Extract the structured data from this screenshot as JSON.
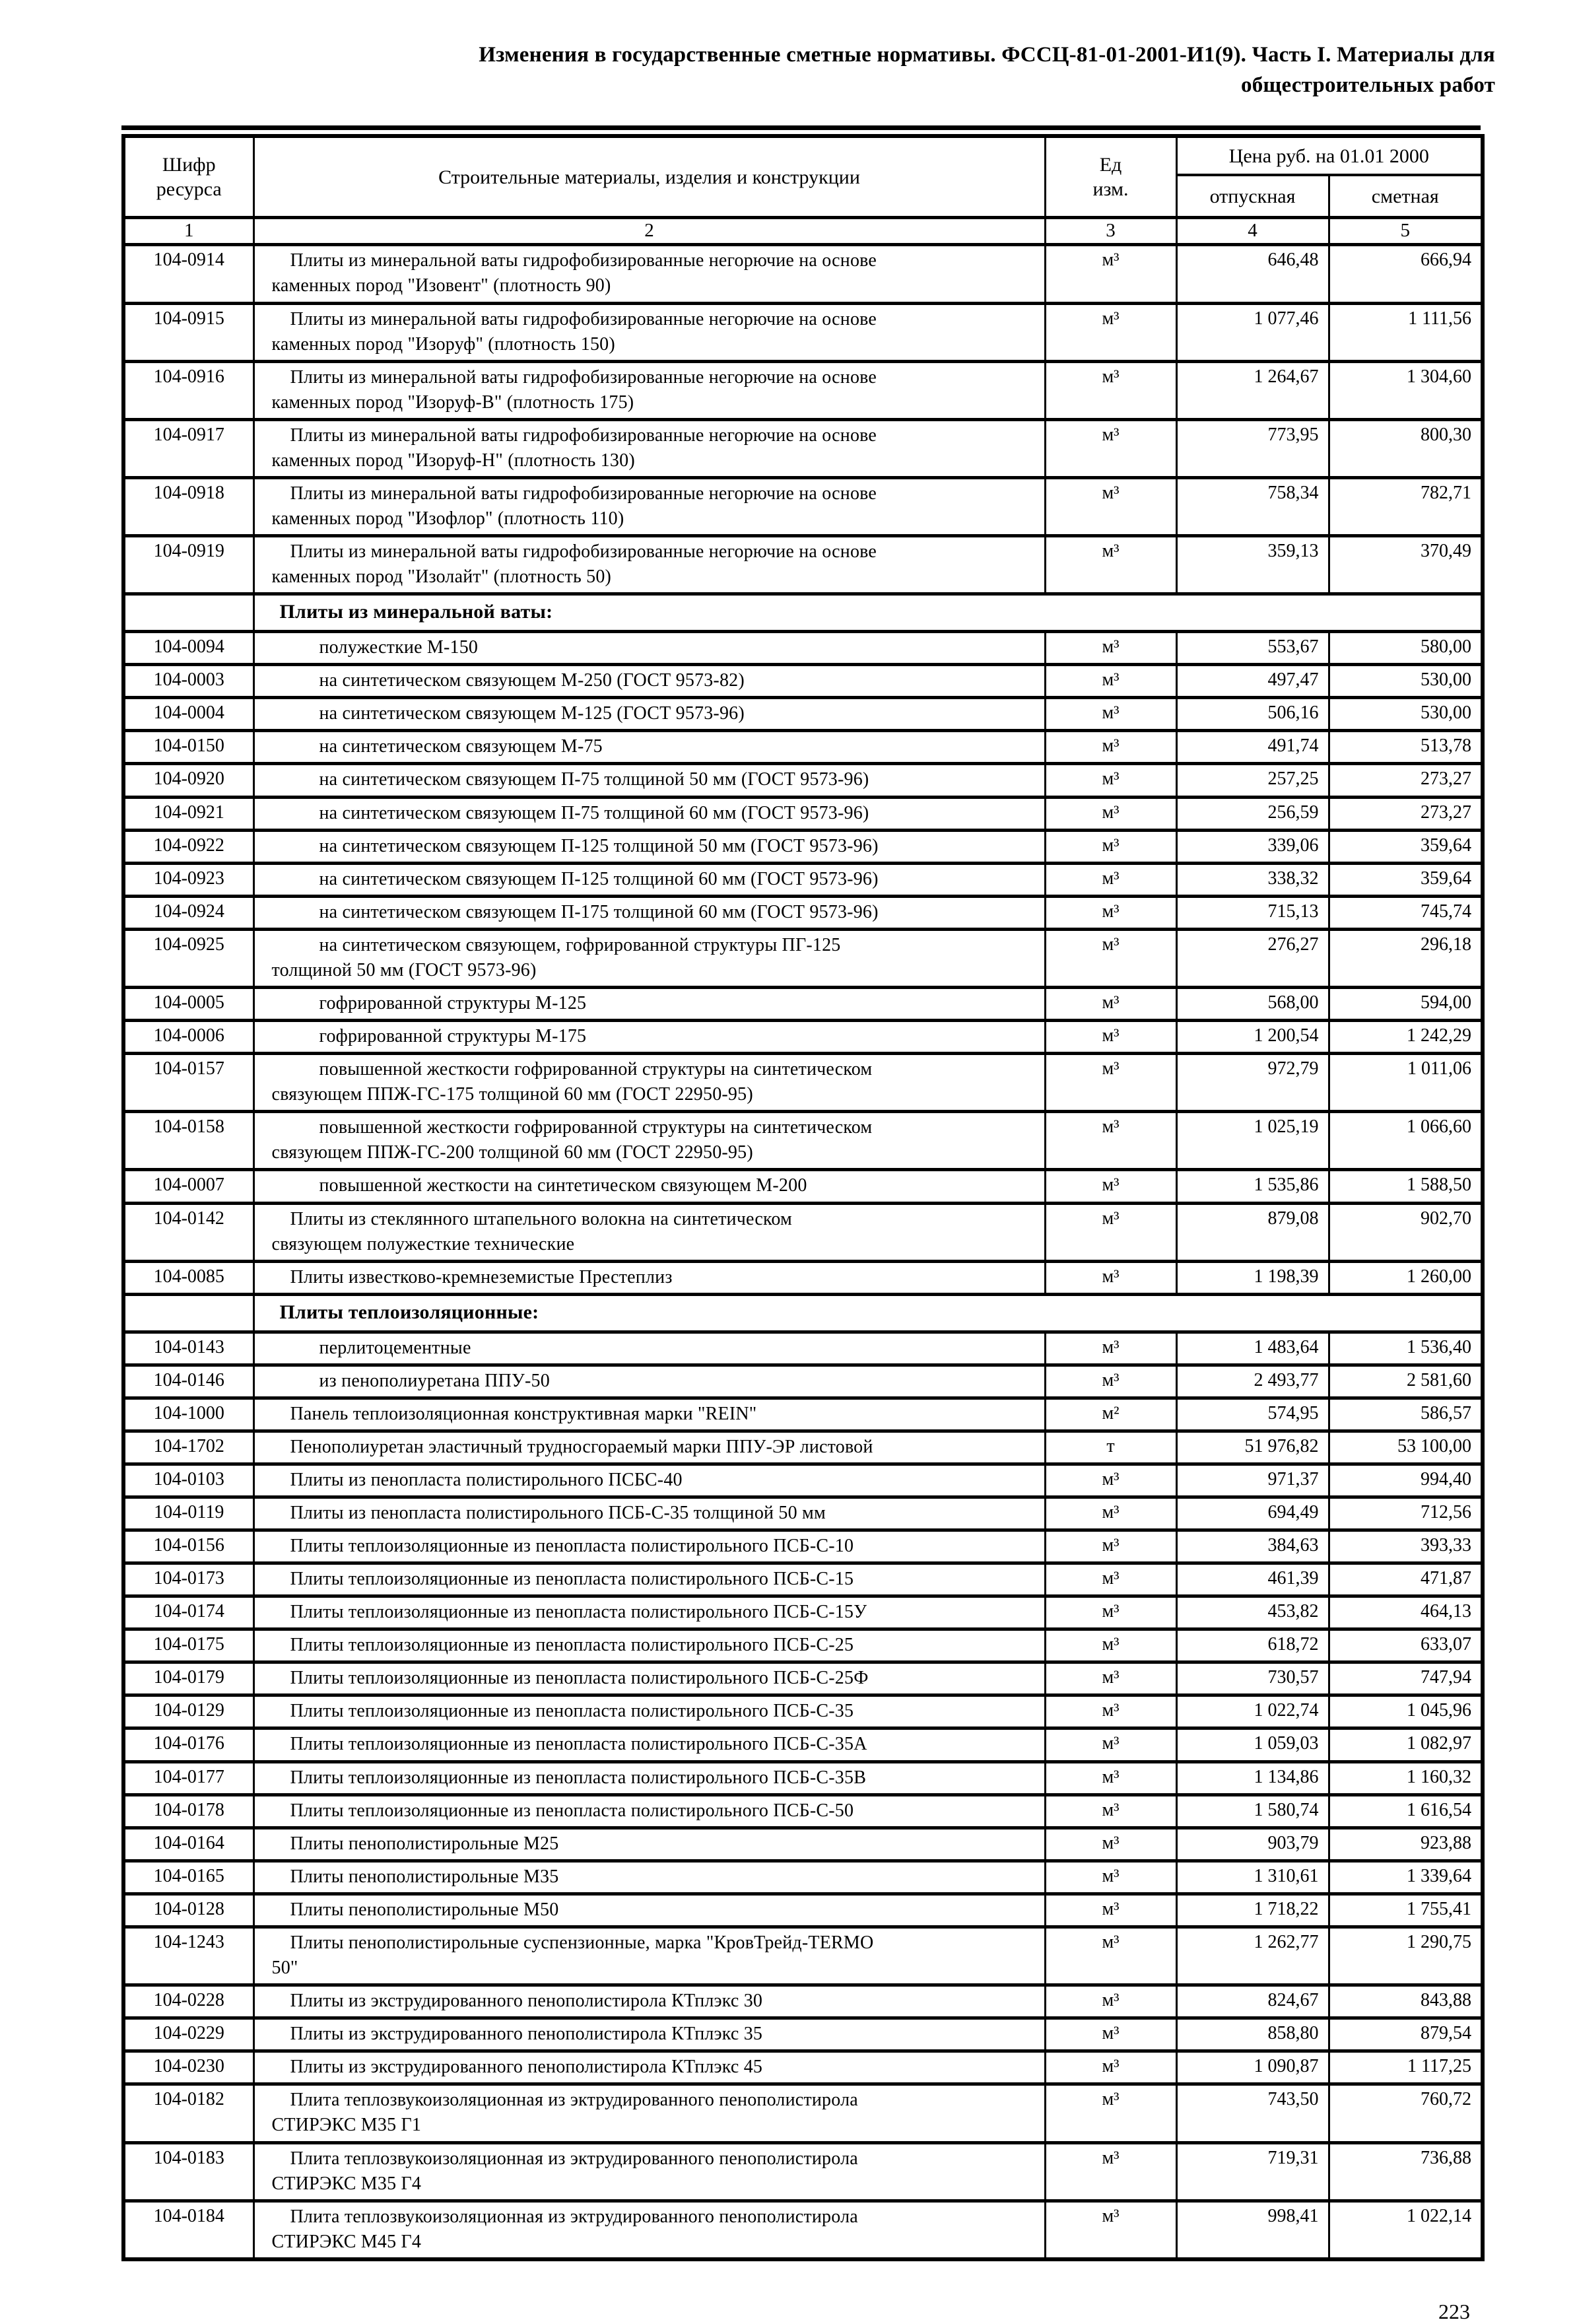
{
  "colors": {
    "ink": "#000000",
    "paper": "#ffffff"
  },
  "page": {
    "title": "Изменения в государственные сметные нормативы. ФССЦ-81-01-2001-И1(9). Часть I. Материалы для общестроительных работ",
    "page_number": "223"
  },
  "table": {
    "headers": {
      "code": "Шифр\nресурса",
      "materials": "Строительные материалы, изделия и конструкции",
      "unit": "Ед\nизм.",
      "price_group": "Цена руб. на 01.01 2000",
      "price_otpusknaya": "отпускная",
      "price_smetnaya": "сметная",
      "numbers": [
        "1",
        "2",
        "3",
        "4",
        "5"
      ]
    },
    "rows": [
      {
        "style": "item",
        "code": "104-0914",
        "name": "Плиты из минеральной ваты гидрофобизированные негорючие на основе\nкаменных пород \"Изовент\" (плотность 90)",
        "unit": "м³",
        "otpusknaya": "646,48",
        "smetnaya": "666,94"
      },
      {
        "style": "item",
        "code": "104-0915",
        "name": "Плиты из минеральной ваты гидрофобизированные негорючие на основе\nкаменных пород \"Изоруф\" (плотность 150)",
        "unit": "м³",
        "otpusknaya": "1 077,46",
        "smetnaya": "1 111,56"
      },
      {
        "style": "item",
        "code": "104-0916",
        "name": "Плиты из минеральной ваты гидрофобизированные негорючие на основе\nкаменных пород \"Изоруф-В\" (плотность 175)",
        "unit": "м³",
        "otpusknaya": "1 264,67",
        "smetnaya": "1 304,60"
      },
      {
        "style": "item",
        "code": "104-0917",
        "name": "Плиты из минеральной ваты гидрофобизированные негорючие на основе\nкаменных пород \"Изоруф-Н\" (плотность 130)",
        "unit": "м³",
        "otpusknaya": "773,95",
        "smetnaya": "800,30"
      },
      {
        "style": "item",
        "code": "104-0918",
        "name": "Плиты из минеральной ваты гидрофобизированные негорючие на основе\nкаменных пород \"Изофлор\" (плотность 110)",
        "unit": "м³",
        "otpusknaya": "758,34",
        "smetnaya": "782,71"
      },
      {
        "style": "item",
        "code": "104-0919",
        "name": "Плиты из минеральной ваты гидрофобизированные негорючие на основе\nкаменных пород \"Изолайт\" (плотность 50)",
        "unit": "м³",
        "otpusknaya": "359,13",
        "smetnaya": "370,49"
      },
      {
        "style": "section",
        "code": "",
        "name": "Плиты из минеральной ваты:",
        "unit": "",
        "otpusknaya": "",
        "smetnaya": ""
      },
      {
        "style": "sub",
        "code": "104-0094",
        "name": "полужесткие М-150",
        "unit": "м³",
        "otpusknaya": "553,67",
        "smetnaya": "580,00"
      },
      {
        "style": "sub",
        "code": "104-0003",
        "name": "на синтетическом связующем М-250 (ГОСТ 9573-82)",
        "unit": "м³",
        "otpusknaya": "497,47",
        "smetnaya": "530,00"
      },
      {
        "style": "sub",
        "code": "104-0004",
        "name": "на синтетическом связующем М-125 (ГОСТ 9573-96)",
        "unit": "м³",
        "otpusknaya": "506,16",
        "smetnaya": "530,00"
      },
      {
        "style": "sub",
        "code": "104-0150",
        "name": "на синтетическом связующем М-75",
        "unit": "м³",
        "otpusknaya": "491,74",
        "smetnaya": "513,78"
      },
      {
        "style": "sub",
        "code": "104-0920",
        "name": "на синтетическом связующем П-75 толщиной 50 мм (ГОСТ 9573-96)",
        "unit": "м³",
        "otpusknaya": "257,25",
        "smetnaya": "273,27"
      },
      {
        "style": "sub",
        "code": "104-0921",
        "name": "на синтетическом связующем П-75 толщиной 60 мм (ГОСТ 9573-96)",
        "unit": "м³",
        "otpusknaya": "256,59",
        "smetnaya": "273,27"
      },
      {
        "style": "sub",
        "code": "104-0922",
        "name": "на синтетическом связующем П-125 толщиной 50 мм (ГОСТ 9573-96)",
        "unit": "м³",
        "otpusknaya": "339,06",
        "smetnaya": "359,64"
      },
      {
        "style": "sub",
        "code": "104-0923",
        "name": "на синтетическом связующем П-125 толщиной 60 мм (ГОСТ 9573-96)",
        "unit": "м³",
        "otpusknaya": "338,32",
        "smetnaya": "359,64"
      },
      {
        "style": "sub",
        "code": "104-0924",
        "name": "на синтетическом связующем П-175 толщиной 60 мм (ГОСТ 9573-96)",
        "unit": "м³",
        "otpusknaya": "715,13",
        "smetnaya": "745,74"
      },
      {
        "style": "sub",
        "code": "104-0925",
        "name": "на синтетическом связующем, гофрированной структуры ПГ-125\nтолщиной 50 мм (ГОСТ 9573-96)",
        "unit": "м³",
        "otpusknaya": "276,27",
        "smetnaya": "296,18"
      },
      {
        "style": "sub",
        "code": "104-0005",
        "name": "гофрированной структуры М-125",
        "unit": "м³",
        "otpusknaya": "568,00",
        "smetnaya": "594,00"
      },
      {
        "style": "sub",
        "code": "104-0006",
        "name": "гофрированной структуры М-175",
        "unit": "м³",
        "otpusknaya": "1 200,54",
        "smetnaya": "1 242,29"
      },
      {
        "style": "sub",
        "code": "104-0157",
        "name": "повышенной жесткости гофрированной структуры на синтетическом\nсвязующем ППЖ-ГС-175 толщиной 60 мм (ГОСТ 22950-95)",
        "unit": "м³",
        "otpusknaya": "972,79",
        "smetnaya": "1 011,06"
      },
      {
        "style": "sub",
        "code": "104-0158",
        "name": "повышенной жесткости гофрированной структуры на синтетическом\nсвязующем ППЖ-ГС-200 толщиной 60 мм (ГОСТ 22950-95)",
        "unit": "м³",
        "otpusknaya": "1 025,19",
        "smetnaya": "1 066,60"
      },
      {
        "style": "sub",
        "code": "104-0007",
        "name": "повышенной жесткости на синтетическом связующем М-200",
        "unit": "м³",
        "otpusknaya": "1 535,86",
        "smetnaya": "1 588,50"
      },
      {
        "style": "item",
        "code": "104-0142",
        "name": "Плиты из стеклянного штапельного волокна на синтетическом\nсвязующем полужесткие технические",
        "unit": "м³",
        "otpusknaya": "879,08",
        "smetnaya": "902,70"
      },
      {
        "style": "item",
        "code": "104-0085",
        "name": "Плиты известково-кремнеземистые Престеплиз",
        "unit": "м³",
        "otpusknaya": "1 198,39",
        "smetnaya": "1 260,00"
      },
      {
        "style": "section",
        "code": "",
        "name": "Плиты теплоизоляционные:",
        "unit": "",
        "otpusknaya": "",
        "smetnaya": ""
      },
      {
        "style": "sub",
        "code": "104-0143",
        "name": "перлитоцементные",
        "unit": "м³",
        "otpusknaya": "1 483,64",
        "smetnaya": "1 536,40"
      },
      {
        "style": "sub",
        "code": "104-0146",
        "name": "из пенополиуретана ППУ-50",
        "unit": "м³",
        "otpusknaya": "2 493,77",
        "smetnaya": "2 581,60"
      },
      {
        "style": "item",
        "code": "104-1000",
        "name": "Панель теплоизоляционная конструктивная марки \"REIN\"",
        "unit": "м²",
        "otpusknaya": "574,95",
        "smetnaya": "586,57"
      },
      {
        "style": "item",
        "code": "104-1702",
        "name": "Пенополиуретан эластичный трудносгораемый марки ППУ-ЭР листовой",
        "unit": "т",
        "otpusknaya": "51 976,82",
        "smetnaya": "53 100,00"
      },
      {
        "style": "item",
        "code": "104-0103",
        "name": "Плиты из пенопласта полистирольного ПСБС-40",
        "unit": "м³",
        "otpusknaya": "971,37",
        "smetnaya": "994,40"
      },
      {
        "style": "item",
        "code": "104-0119",
        "name": "Плиты из пенопласта полистирольного ПСБ-С-35 толщиной 50 мм",
        "unit": "м³",
        "otpusknaya": "694,49",
        "smetnaya": "712,56"
      },
      {
        "style": "item",
        "code": "104-0156",
        "name": "Плиты теплоизоляционные из пенопласта полистирольного ПСБ-С-10",
        "unit": "м³",
        "otpusknaya": "384,63",
        "smetnaya": "393,33"
      },
      {
        "style": "item",
        "code": "104-0173",
        "name": "Плиты теплоизоляционные из пенопласта полистирольного ПСБ-С-15",
        "unit": "м³",
        "otpusknaya": "461,39",
        "smetnaya": "471,87"
      },
      {
        "style": "item",
        "code": "104-0174",
        "name": "Плиты теплоизоляционные из пенопласта полистирольного ПСБ-С-15У",
        "unit": "м³",
        "otpusknaya": "453,82",
        "smetnaya": "464,13"
      },
      {
        "style": "item",
        "code": "104-0175",
        "name": "Плиты теплоизоляционные из пенопласта полистирольного ПСБ-С-25",
        "unit": "м³",
        "otpusknaya": "618,72",
        "smetnaya": "633,07"
      },
      {
        "style": "item",
        "code": "104-0179",
        "name": "Плиты теплоизоляционные из пенопласта полистирольного ПСБ-С-25Ф",
        "unit": "м³",
        "otpusknaya": "730,57",
        "smetnaya": "747,94"
      },
      {
        "style": "item",
        "code": "104-0129",
        "name": "Плиты теплоизоляционные из пенопласта полистирольного ПСБ-С-35",
        "unit": "м³",
        "otpusknaya": "1 022,74",
        "smetnaya": "1 045,96"
      },
      {
        "style": "item",
        "code": "104-0176",
        "name": "Плиты теплоизоляционные из пенопласта полистирольного ПСБ-С-35А",
        "unit": "м³",
        "otpusknaya": "1 059,03",
        "smetnaya": "1 082,97"
      },
      {
        "style": "item",
        "code": "104-0177",
        "name": "Плиты теплоизоляционные из пенопласта полистирольного ПСБ-С-35В",
        "unit": "м³",
        "otpusknaya": "1 134,86",
        "smetnaya": "1 160,32"
      },
      {
        "style": "item",
        "code": "104-0178",
        "name": "Плиты теплоизоляционные из пенопласта полистирольного ПСБ-С-50",
        "unit": "м³",
        "otpusknaya": "1 580,74",
        "smetnaya": "1 616,54"
      },
      {
        "style": "item",
        "code": "104-0164",
        "name": "Плиты пенополистирольные М25",
        "unit": "м³",
        "otpusknaya": "903,79",
        "smetnaya": "923,88"
      },
      {
        "style": "item",
        "code": "104-0165",
        "name": "Плиты пенополистирольные М35",
        "unit": "м³",
        "otpusknaya": "1 310,61",
        "smetnaya": "1 339,64"
      },
      {
        "style": "item",
        "code": "104-0128",
        "name": "Плиты пенополистирольные М50",
        "unit": "м³",
        "otpusknaya": "1 718,22",
        "smetnaya": "1 755,41"
      },
      {
        "style": "item",
        "code": "104-1243",
        "name": "Плиты пенополистирольные суспензионные, марка \"КровТрейд-TERMO\n50\"",
        "unit": "м³",
        "otpusknaya": "1 262,77",
        "smetnaya": "1 290,75"
      },
      {
        "style": "item",
        "code": "104-0228",
        "name": "Плиты из экструдированного пенополистирола КТплэкс 30",
        "unit": "м³",
        "otpusknaya": "824,67",
        "smetnaya": "843,88"
      },
      {
        "style": "item",
        "code": "104-0229",
        "name": "Плиты из экструдированного пенополистирола КТплэкс 35",
        "unit": "м³",
        "otpusknaya": "858,80",
        "smetnaya": "879,54"
      },
      {
        "style": "item",
        "code": "104-0230",
        "name": "Плиты из экструдированного пенополистирола КТплэкс 45",
        "unit": "м³",
        "otpusknaya": "1 090,87",
        "smetnaya": "1 117,25"
      },
      {
        "style": "item",
        "code": "104-0182",
        "name": "Плита теплозвукоизоляционная из эктрудированного пенополистирола\nСТИРЭКС М35 Г1",
        "unit": "м³",
        "otpusknaya": "743,50",
        "smetnaya": "760,72"
      },
      {
        "style": "item",
        "code": "104-0183",
        "name": "Плита теплозвукоизоляционная из эктрудированного пенополистирола\nСТИРЭКС М35 Г4",
        "unit": "м³",
        "otpusknaya": "719,31",
        "smetnaya": "736,88"
      },
      {
        "style": "item",
        "code": "104-0184",
        "name": "Плита теплозвукоизоляционная из эктрудированного пенополистирола\nСТИРЭКС М45 Г4",
        "unit": "м³",
        "otpusknaya": "998,41",
        "smetnaya": "1 022,14"
      }
    ]
  }
}
